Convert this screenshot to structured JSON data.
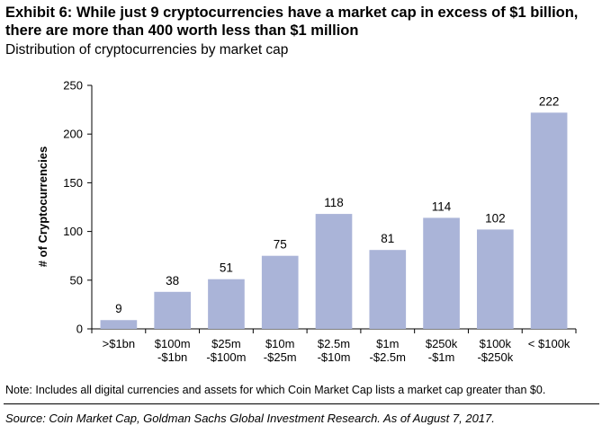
{
  "header": {
    "title": "Exhibit 6: While just 9 cryptocurrencies have a market cap in excess of $1 billion, there are more than 400 worth less than $1 million",
    "subtitle": "Distribution of cryptocurrencies by market cap"
  },
  "footer": {
    "note": "Note: Includes all digital currencies and assets for which Coin Market Cap lists a market cap greater than $0.",
    "source": "Source: Coin Market Cap, Goldman Sachs Global Investment Research. As of August 7, 2017."
  },
  "chart_data": {
    "type": "bar",
    "categories": [
      [
        ">$1bn"
      ],
      [
        "$100m",
        "-$1bn"
      ],
      [
        "$25m",
        "-$100m"
      ],
      [
        "$10m",
        "-$25m"
      ],
      [
        "$2.5m",
        "-$10m"
      ],
      [
        "$1m",
        "-$2.5m"
      ],
      [
        "$250k",
        "-$1m"
      ],
      [
        "$100k",
        "-$250k"
      ],
      [
        "< $100k"
      ]
    ],
    "values": [
      9,
      38,
      51,
      75,
      118,
      81,
      114,
      102,
      222
    ],
    "title": "Distribution of cryptocurrencies by market cap",
    "xlabel": "",
    "ylabel": "# of Cryptocurrencies",
    "ylim": [
      0,
      250
    ],
    "yticks": [
      0,
      50,
      100,
      150,
      200,
      250
    ],
    "grid": false,
    "data_labels": true,
    "bar_color": "#aab4d8"
  }
}
